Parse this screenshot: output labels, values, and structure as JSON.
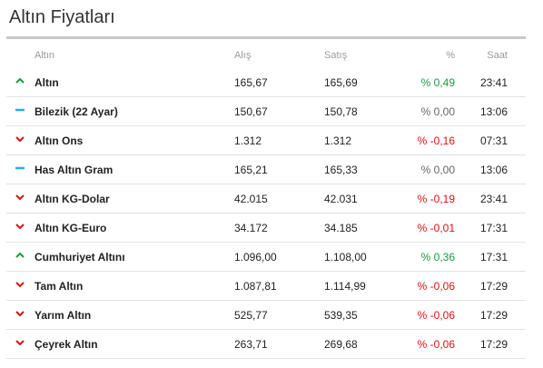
{
  "title": "Altın Fiyatları",
  "headers": {
    "name": "Altın",
    "buy": "Alış",
    "sell": "Satış",
    "pct": "%",
    "time": "Saat"
  },
  "colors": {
    "up": "#1a9a3a",
    "down": "#dd1111",
    "flat_icon": "#29aee3",
    "flat_text": "#666666"
  },
  "rows": [
    {
      "name": "Altın",
      "buy": "165,67",
      "sell": "165,69",
      "pct": "% 0,49",
      "time": "23:41",
      "trend": "up",
      "icon": "arrow-up-icon"
    },
    {
      "name": "Bilezik (22 Ayar)",
      "buy": "150,67",
      "sell": "150,78",
      "pct": "% 0,00",
      "time": "13:06",
      "trend": "flat",
      "icon": "dash-icon"
    },
    {
      "name": "Altın Ons",
      "buy": "1.312",
      "sell": "1.312",
      "pct": "% -0,16",
      "time": "07:31",
      "trend": "down",
      "icon": "arrow-down-icon"
    },
    {
      "name": "Has Altın Gram",
      "buy": "165,21",
      "sell": "165,33",
      "pct": "% 0,00",
      "time": "13:06",
      "trend": "flat",
      "icon": "dash-icon"
    },
    {
      "name": "Altın KG-Dolar",
      "buy": "42.015",
      "sell": "42.031",
      "pct": "% -0,19",
      "time": "23:41",
      "trend": "down",
      "icon": "arrow-down-icon"
    },
    {
      "name": "Altın KG-Euro",
      "buy": "34.172",
      "sell": "34.185",
      "pct": "% -0,01",
      "time": "17:31",
      "trend": "down",
      "icon": "arrow-down-icon"
    },
    {
      "name": "Cumhuriyet Altını",
      "buy": "1.096,00",
      "sell": "1.108,00",
      "pct": "% 0,36",
      "time": "17:31",
      "trend": "up",
      "icon": "arrow-up-icon"
    },
    {
      "name": "Tam Altın",
      "buy": "1.087,81",
      "sell": "1.114,99",
      "pct": "% -0,06",
      "time": "17:29",
      "trend": "down",
      "icon": "arrow-down-icon"
    },
    {
      "name": "Yarım Altın",
      "buy": "525,77",
      "sell": "539,35",
      "pct": "% -0,06",
      "time": "17:29",
      "trend": "down",
      "icon": "arrow-down-icon"
    },
    {
      "name": "Çeyrek Altın",
      "buy": "263,71",
      "sell": "269,68",
      "pct": "% -0,06",
      "time": "17:29",
      "trend": "down",
      "icon": "arrow-down-icon"
    }
  ]
}
